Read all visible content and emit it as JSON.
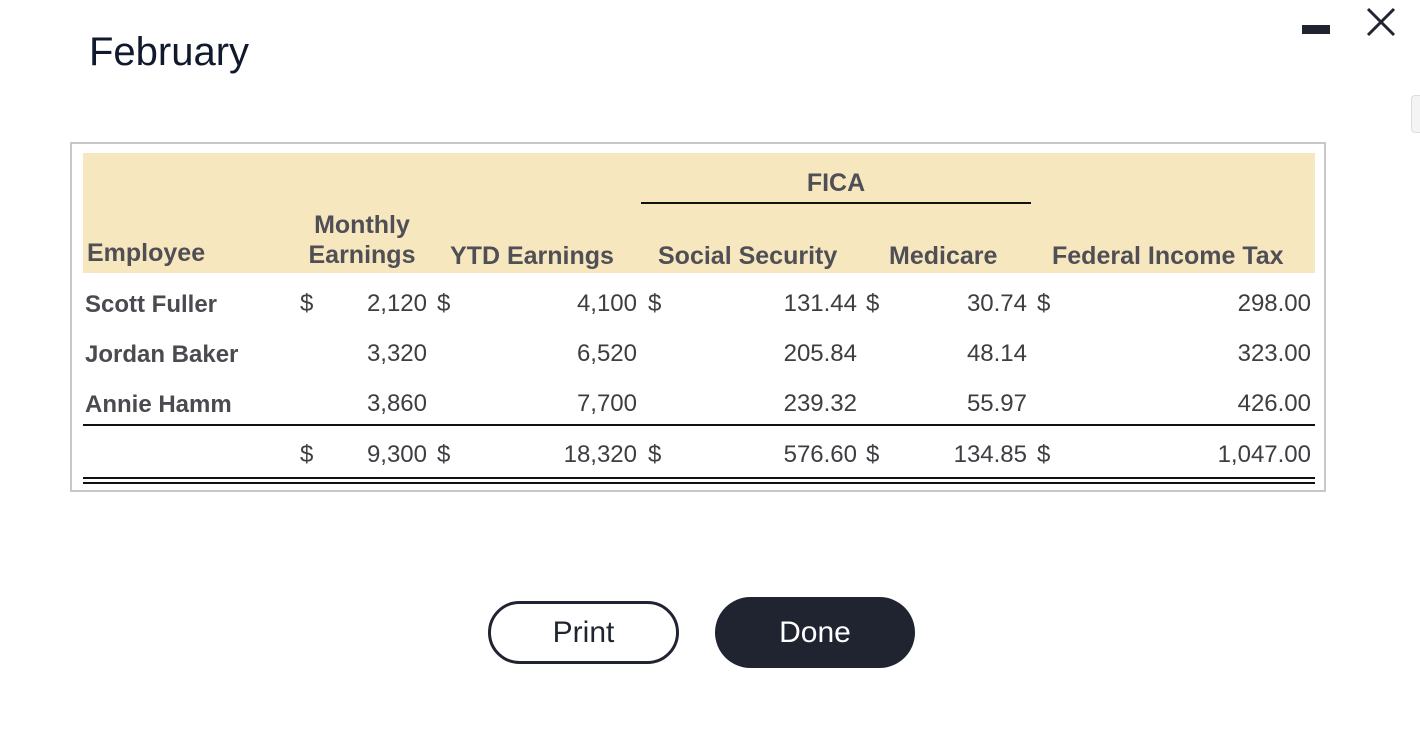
{
  "header": {
    "title": "February"
  },
  "table": {
    "group_header": "FICA",
    "columns": [
      "Employee",
      "Monthly Earnings",
      "YTD Earnings",
      "Social Security",
      "Medicare",
      "Federal Income Tax"
    ],
    "rows": [
      {
        "employee": "Scott Fuller",
        "cells": [
          {
            "currency": "$",
            "amount": "2,120"
          },
          {
            "currency": "$",
            "amount": "4,100"
          },
          {
            "currency": "$",
            "amount": "131.44"
          },
          {
            "currency": "$",
            "amount": "30.74"
          },
          {
            "currency": "$",
            "amount": "298.00"
          }
        ]
      },
      {
        "employee": "Jordan Baker",
        "cells": [
          {
            "amount": "3,320"
          },
          {
            "amount": "6,520"
          },
          {
            "amount": "205.84"
          },
          {
            "amount": "48.14"
          },
          {
            "amount": "323.00"
          }
        ]
      },
      {
        "employee": "Annie Hamm",
        "cells": [
          {
            "amount": "3,860"
          },
          {
            "amount": "7,700"
          },
          {
            "amount": "239.32"
          },
          {
            "amount": "55.97"
          },
          {
            "amount": "426.00"
          }
        ]
      }
    ],
    "total": {
      "cells": [
        {
          "currency": "$",
          "amount": "9,300"
        },
        {
          "currency": "$",
          "amount": "18,320"
        },
        {
          "currency": "$",
          "amount": "576.60"
        },
        {
          "currency": "$",
          "amount": "134.85"
        },
        {
          "currency": "$",
          "amount": "1,047.00"
        }
      ]
    }
  },
  "buttons": {
    "print": "Print",
    "done": "Done"
  }
}
